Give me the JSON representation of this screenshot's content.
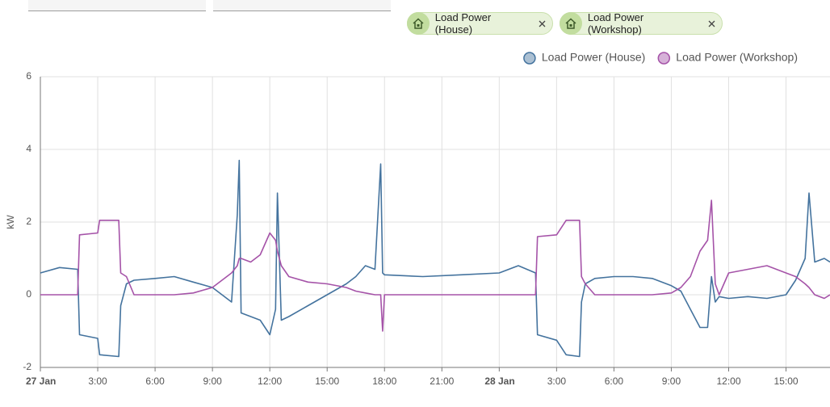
{
  "chips": [
    {
      "label": "Load Power (House)"
    },
    {
      "label": "Load Power (Workshop)"
    }
  ],
  "chart_data": {
    "type": "line",
    "y_label": "kW",
    "x": [
      0,
      1,
      1.95,
      2.05,
      3,
      3.1,
      4.1,
      4.2,
      4.5,
      4.9,
      6,
      7,
      8,
      9,
      10,
      10.3,
      10.4,
      10.5,
      11,
      11.5,
      12,
      12.3,
      12.4,
      12.6,
      13,
      14,
      15,
      16,
      16.5,
      17,
      17.5,
      17.8,
      17.9,
      18,
      20,
      22,
      24,
      25,
      25.9,
      26,
      27,
      27.5,
      28.2,
      28.3,
      28.5,
      29,
      30,
      31,
      32,
      33,
      33.5,
      34,
      34.5,
      34.9,
      35.1,
      35.3,
      35.5,
      36,
      37,
      38,
      39,
      39.5,
      40,
      40.2,
      40.5,
      41,
      41.3
    ],
    "series": [
      {
        "name": "Load Power (House)",
        "color": "#44739e",
        "values": [
          0.6,
          0.75,
          0.7,
          -1.1,
          -1.2,
          -1.65,
          -1.7,
          -0.3,
          0.3,
          0.4,
          0.45,
          0.5,
          0.35,
          0.2,
          -0.2,
          2.2,
          3.7,
          -0.5,
          -0.6,
          -0.7,
          -1.1,
          -0.4,
          2.8,
          -0.7,
          -0.6,
          -0.3,
          0,
          0.3,
          0.5,
          0.8,
          0.7,
          3.6,
          0.6,
          0.55,
          0.5,
          0.55,
          0.6,
          0.8,
          0.6,
          -1.1,
          -1.25,
          -1.65,
          -1.7,
          -0.2,
          0.3,
          0.45,
          0.5,
          0.5,
          0.45,
          0.25,
          0.1,
          -0.4,
          -0.9,
          -0.9,
          0.5,
          -0.2,
          -0.05,
          -0.1,
          -0.05,
          -0.1,
          0,
          0.4,
          1.0,
          2.8,
          0.9,
          1.0,
          0.9
        ]
      },
      {
        "name": "Load Power (Workshop)",
        "color": "#a553a8",
        "values": [
          0,
          0,
          0,
          1.65,
          1.7,
          2.05,
          2.05,
          0.6,
          0.5,
          0,
          0,
          0,
          0.05,
          0.2,
          0.6,
          0.8,
          1.0,
          1.0,
          0.9,
          1.1,
          1.7,
          1.5,
          1.2,
          0.8,
          0.5,
          0.35,
          0.3,
          0.2,
          0.1,
          0.05,
          0,
          0,
          -1.0,
          0,
          0,
          0,
          0,
          0,
          0,
          1.6,
          1.65,
          2.05,
          2.05,
          0.5,
          0.3,
          0,
          0,
          0,
          0,
          0.05,
          0.2,
          0.5,
          1.2,
          1.5,
          2.6,
          0.3,
          0,
          0.6,
          0.7,
          0.8,
          0.6,
          0.5,
          0.3,
          0.2,
          0,
          -0.1,
          0
        ]
      }
    ],
    "xlim": [
      0,
      41.3
    ],
    "xticks": [
      {
        "value": 0,
        "label": "27 Jan"
      },
      {
        "value": 3,
        "label": "3:00"
      },
      {
        "value": 6,
        "label": "6:00"
      },
      {
        "value": 9,
        "label": "9:00"
      },
      {
        "value": 12,
        "label": "12:00"
      },
      {
        "value": 15,
        "label": "15:00"
      },
      {
        "value": 18,
        "label": "18:00"
      },
      {
        "value": 21,
        "label": "21:00"
      },
      {
        "value": 24,
        "label": "28 Jan"
      },
      {
        "value": 27,
        "label": "3:00"
      },
      {
        "value": 30,
        "label": "6:00"
      },
      {
        "value": 33,
        "label": "9:00"
      },
      {
        "value": 36,
        "label": "12:00"
      },
      {
        "value": 39,
        "label": "15:00"
      }
    ],
    "ylim": [
      -2,
      6
    ],
    "yticks": [
      -2,
      0,
      2,
      4,
      6
    ],
    "grid": true
  }
}
